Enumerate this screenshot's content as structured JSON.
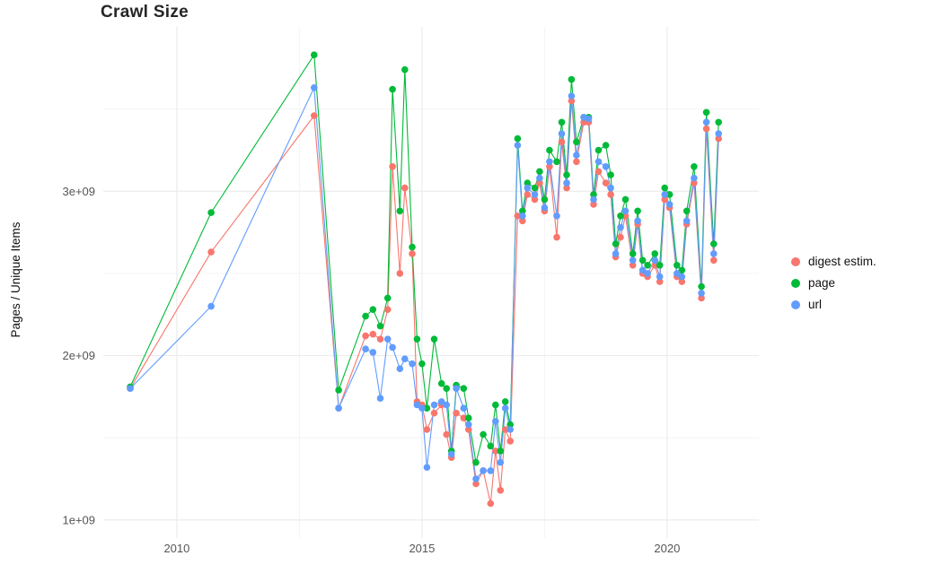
{
  "page": {
    "background": "#ffffff"
  },
  "chart_data": {
    "type": "line",
    "points": true,
    "title": "Crawl Size",
    "xlabel": "",
    "ylabel": "Pages / Unique Items",
    "y_unit": "pages (value shown in units of 1e9)",
    "xlim": [
      2008.5,
      2021.87
    ],
    "ylim": [
      0.89,
      4.0
    ],
    "grid": {
      "on": true,
      "major_color": "#ececec",
      "minor_color": "#f4f4f4"
    },
    "legend_position": "right",
    "x_ticks": [
      {
        "value": 2010,
        "label": "2010"
      },
      {
        "value": 2015,
        "label": "2015"
      },
      {
        "value": 2020,
        "label": "2020"
      }
    ],
    "x_minor_ticks": [
      2012.5,
      2017.5
    ],
    "y_ticks": [
      {
        "value": 1,
        "label": "1e+09"
      },
      {
        "value": 2,
        "label": "2e+09"
      },
      {
        "value": 3,
        "label": "3e+09"
      }
    ],
    "y_minor_ticks": [
      1.5,
      2.5,
      3.5
    ],
    "tick_label_color": "#555555",
    "x": [
      2009.05,
      2010.7,
      2012.8,
      2013.3,
      2013.85,
      2014.0,
      2014.15,
      2014.3,
      2014.4,
      2014.55,
      2014.65,
      2014.8,
      2014.9,
      2015.0,
      2015.1,
      2015.25,
      2015.4,
      2015.5,
      2015.6,
      2015.7,
      2015.85,
      2015.95,
      2016.1,
      2016.25,
      2016.4,
      2016.5,
      2016.6,
      2016.7,
      2016.8,
      2016.95,
      2017.05,
      2017.15,
      2017.3,
      2017.4,
      2017.5,
      2017.6,
      2017.75,
      2017.85,
      2017.95,
      2018.05,
      2018.15,
      2018.3,
      2018.4,
      2018.5,
      2018.6,
      2018.75,
      2018.85,
      2018.95,
      2019.05,
      2019.15,
      2019.3,
      2019.4,
      2019.5,
      2019.6,
      2019.75,
      2019.85,
      2019.95,
      2020.05,
      2020.2,
      2020.3,
      2020.4,
      2020.55,
      2020.7,
      2020.8,
      2020.95,
      2021.05
    ],
    "series": [
      {
        "name": "digest estim.",
        "color": "#F8766D",
        "values": [
          1.8,
          2.63,
          3.46,
          1.68,
          2.12,
          2.13,
          2.1,
          2.28,
          3.15,
          2.5,
          3.02,
          2.62,
          1.72,
          1.7,
          1.55,
          1.65,
          1.7,
          1.52,
          1.38,
          1.65,
          1.62,
          1.55,
          1.22,
          1.3,
          1.1,
          1.42,
          1.18,
          1.55,
          1.48,
          2.85,
          2.82,
          2.98,
          2.95,
          3.05,
          2.88,
          3.15,
          2.72,
          3.3,
          3.02,
          3.55,
          3.18,
          3.42,
          3.42,
          2.92,
          3.12,
          3.05,
          2.98,
          2.6,
          2.72,
          2.85,
          2.55,
          2.8,
          2.5,
          2.48,
          2.55,
          2.45,
          2.95,
          2.9,
          2.48,
          2.45,
          2.8,
          3.05,
          2.35,
          3.38,
          2.58,
          3.32
        ]
      },
      {
        "name": "page",
        "color": "#00BA38",
        "values": [
          1.81,
          2.87,
          3.83,
          1.79,
          2.24,
          2.28,
          2.18,
          2.35,
          3.62,
          2.88,
          3.74,
          2.66,
          2.1,
          1.95,
          1.68,
          2.1,
          1.83,
          1.8,
          1.42,
          1.82,
          1.8,
          1.62,
          1.35,
          1.52,
          1.45,
          1.7,
          1.42,
          1.72,
          1.58,
          3.32,
          2.88,
          3.05,
          3.02,
          3.12,
          2.95,
          3.25,
          3.18,
          3.42,
          3.1,
          3.68,
          3.3,
          3.45,
          3.45,
          2.98,
          3.25,
          3.28,
          3.1,
          2.68,
          2.85,
          2.95,
          2.62,
          2.88,
          2.58,
          2.55,
          2.62,
          2.55,
          3.02,
          2.98,
          2.55,
          2.52,
          2.88,
          3.15,
          2.42,
          3.48,
          2.68,
          3.42
        ]
      },
      {
        "name": "url",
        "color": "#619CFF",
        "values": [
          1.8,
          2.3,
          3.63,
          1.68,
          2.04,
          2.02,
          1.74,
          2.1,
          2.05,
          1.92,
          1.98,
          1.95,
          1.7,
          1.68,
          1.32,
          1.7,
          1.72,
          1.7,
          1.4,
          1.8,
          1.68,
          1.58,
          1.25,
          1.3,
          1.3,
          1.6,
          1.35,
          1.68,
          1.55,
          3.28,
          2.85,
          3.02,
          2.98,
          3.08,
          2.9,
          3.18,
          2.85,
          3.35,
          3.05,
          3.58,
          3.22,
          3.45,
          3.44,
          2.95,
          3.18,
          3.15,
          3.02,
          2.62,
          2.78,
          2.88,
          2.58,
          2.82,
          2.52,
          2.5,
          2.58,
          2.48,
          2.98,
          2.92,
          2.5,
          2.48,
          2.82,
          3.08,
          2.38,
          3.42,
          2.62,
          3.35
        ]
      }
    ]
  }
}
